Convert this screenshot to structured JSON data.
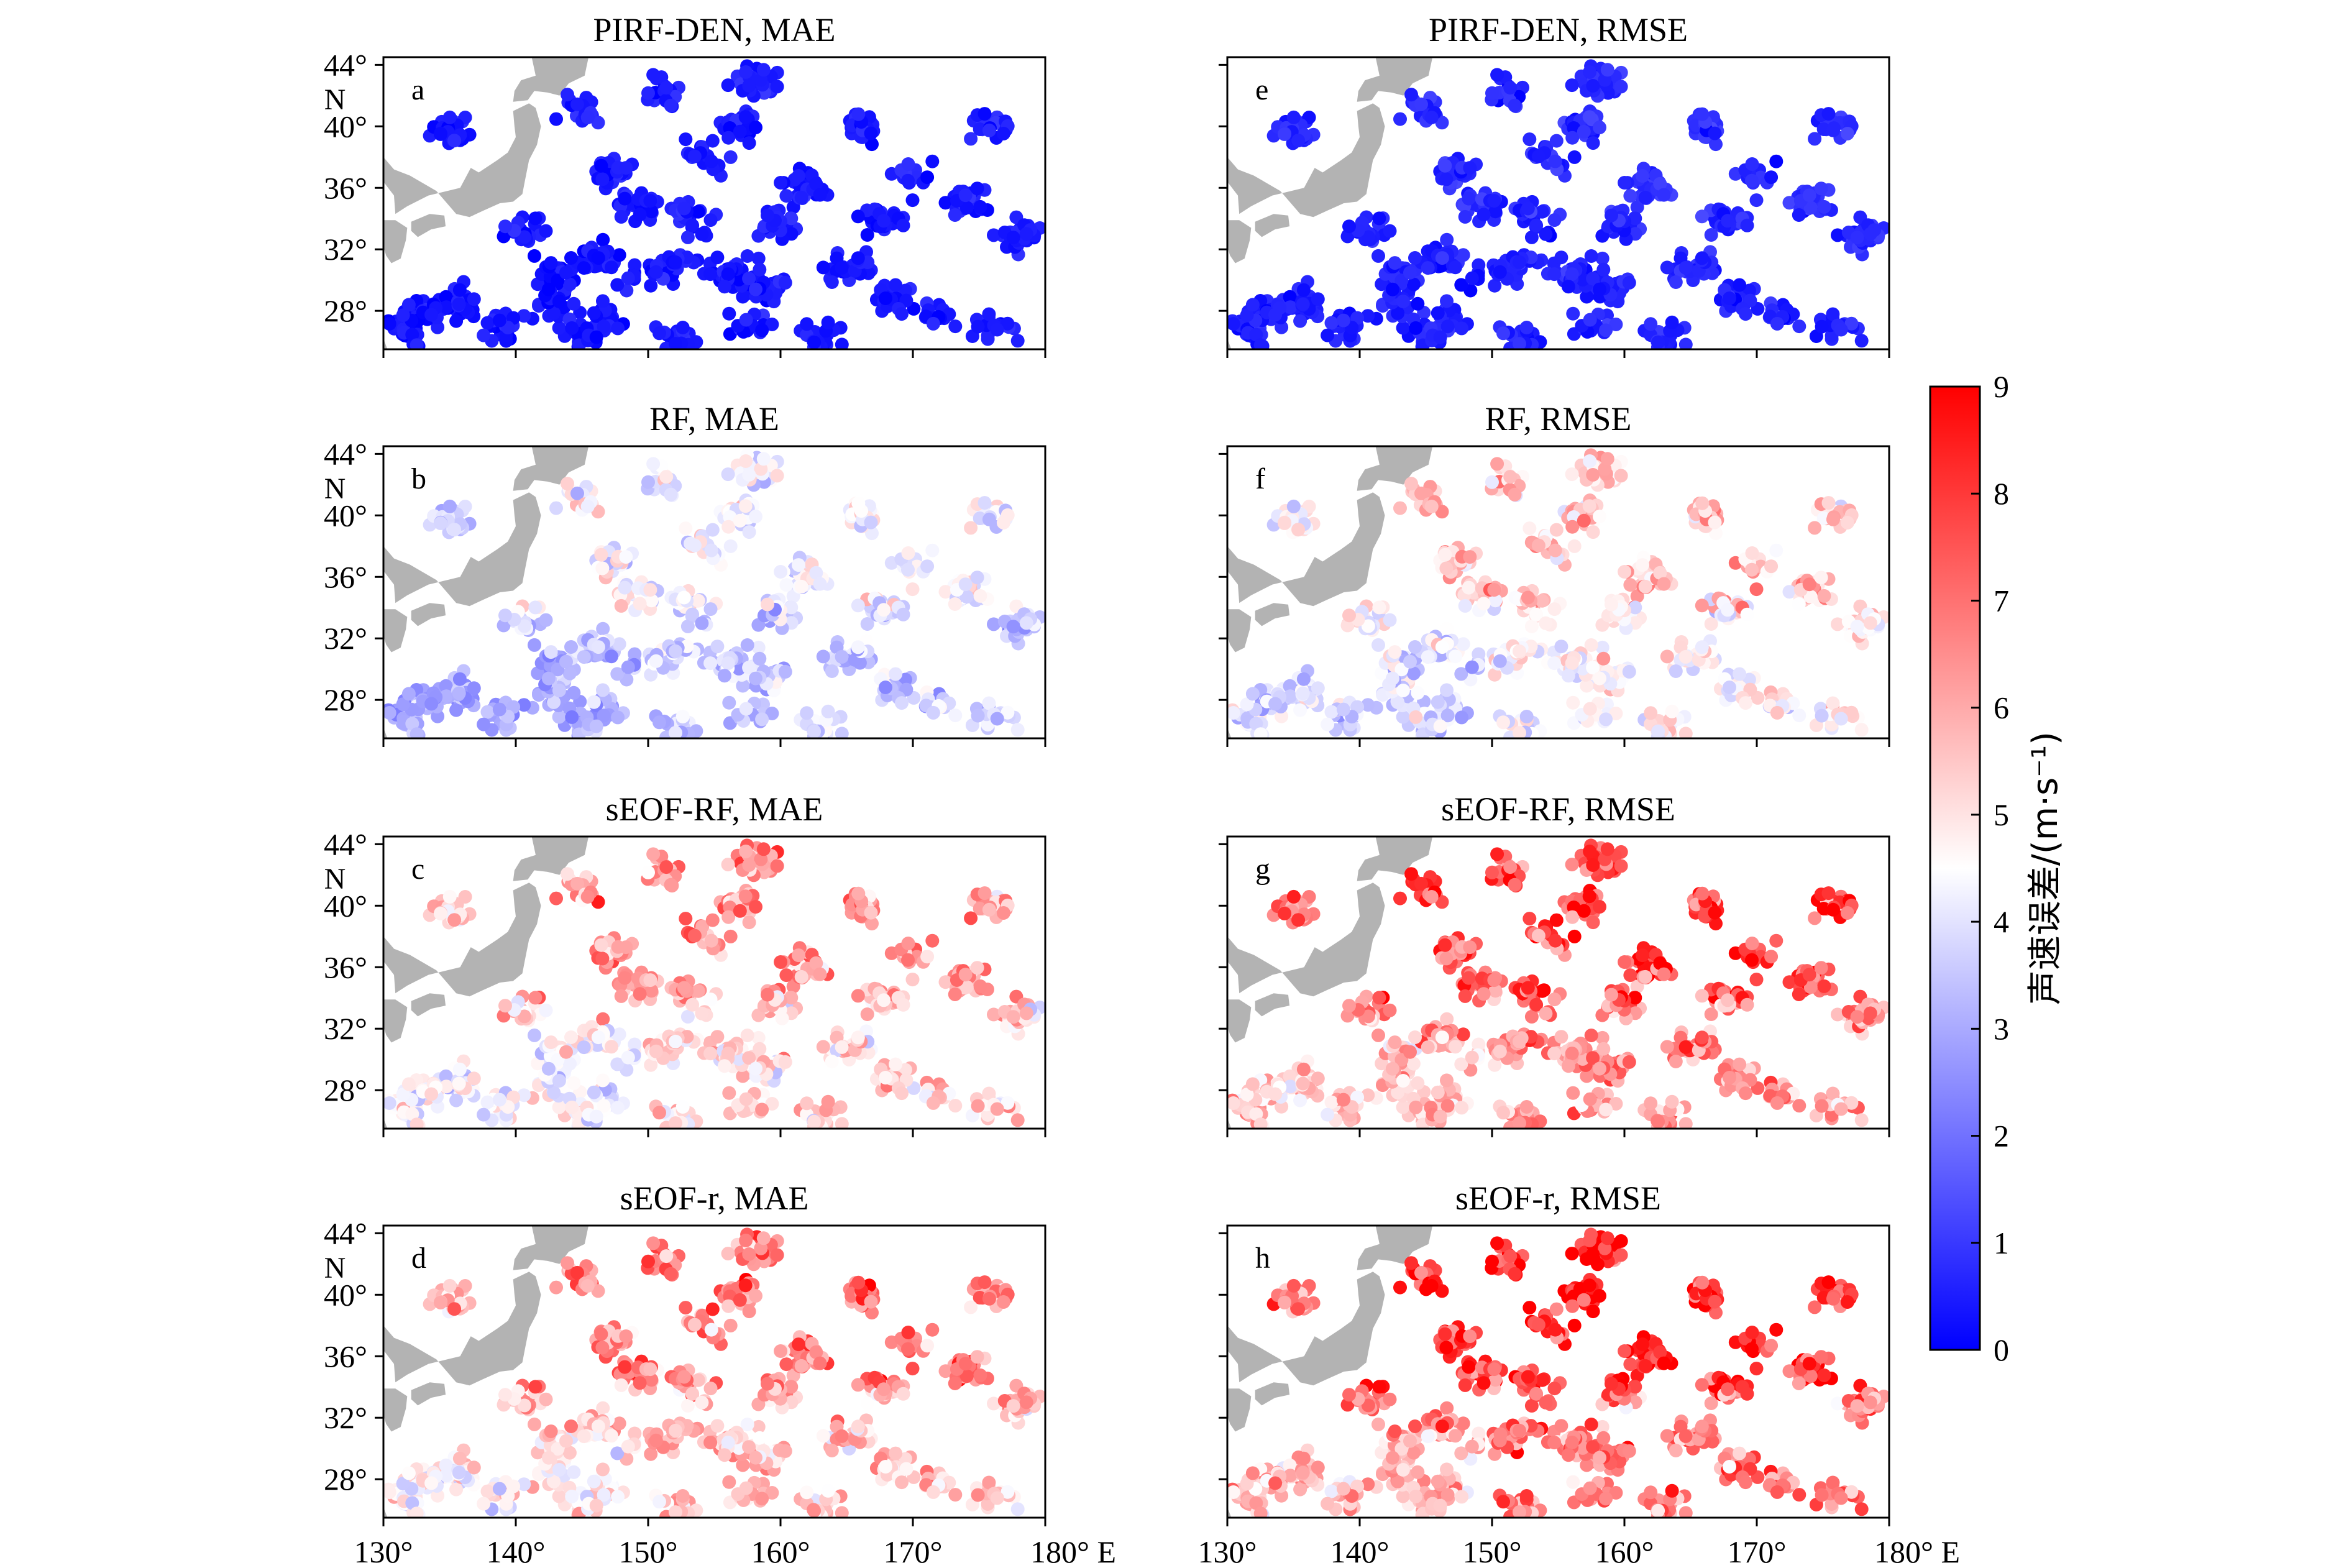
{
  "figure": {
    "panels": [
      {
        "id": "a",
        "title": "PIRF-DEN, MAE",
        "label": "a",
        "method": "PIRF-DEN",
        "metric": "MAE",
        "level_0to9": 0.4
      },
      {
        "id": "e",
        "title": "PIRF-DEN, RMSE",
        "label": "e",
        "method": "PIRF-DEN",
        "metric": "RMSE",
        "level_0to9": 0.6
      },
      {
        "id": "b",
        "title": "RF, MAE",
        "label": "b",
        "method": "RF",
        "metric": "MAE",
        "level_0to9": 3.6
      },
      {
        "id": "f",
        "title": "RF, RMSE",
        "label": "f",
        "method": "RF",
        "metric": "RMSE",
        "level_0to9": 4.6
      },
      {
        "id": "c",
        "title": "sEOF-RF, MAE",
        "label": "c",
        "method": "sEOF-RF",
        "metric": "MAE",
        "level_0to9": 5.2
      },
      {
        "id": "g",
        "title": "sEOF-RF, RMSE",
        "label": "g",
        "method": "sEOF-RF",
        "metric": "RMSE",
        "level_0to9": 6.4
      },
      {
        "id": "d",
        "title": "sEOF-r, MAE",
        "label": "d",
        "method": "sEOF-r",
        "metric": "MAE",
        "level_0to9": 5.6
      },
      {
        "id": "h",
        "title": "sEOF-r, RMSE",
        "label": "h",
        "method": "sEOF-r",
        "metric": "RMSE",
        "level_0to9": 6.8
      }
    ],
    "colorbar": {
      "label": "声速误差/(m·s⁻¹)",
      "ticks": [
        "0",
        "1",
        "2",
        "3",
        "4",
        "5",
        "6",
        "7",
        "8",
        "9"
      ],
      "colors": {
        "low": "#0000ff",
        "mid": "#ffffff",
        "high": "#ff0000"
      }
    },
    "colors": {
      "land": "#b3b3b3",
      "frame": "#000000",
      "background": "#ffffff"
    }
  },
  "chart_data": {
    "type": "scatter",
    "subtype": "geographic scatter map (8 panels)",
    "x_axis": {
      "range": [
        130,
        180
      ],
      "unit": "°E",
      "ticks": [
        "130°",
        "140°",
        "150°",
        "160°",
        "170°",
        "180° E"
      ]
    },
    "y_axis": {
      "range": [
        25.5,
        44.5
      ],
      "unit": "°N",
      "ticks": [
        "44°",
        "40°",
        "36°",
        "32°",
        "28°"
      ],
      "unit_label": "N"
    },
    "color_scale": {
      "min": 0,
      "max": 9,
      "colormap": "blue-white-red"
    },
    "note_points": "individual station points are too dense to read; each panel summarized by its dominant error level",
    "panel_order": [
      "a",
      "e",
      "b",
      "f",
      "c",
      "g",
      "d",
      "h"
    ]
  }
}
